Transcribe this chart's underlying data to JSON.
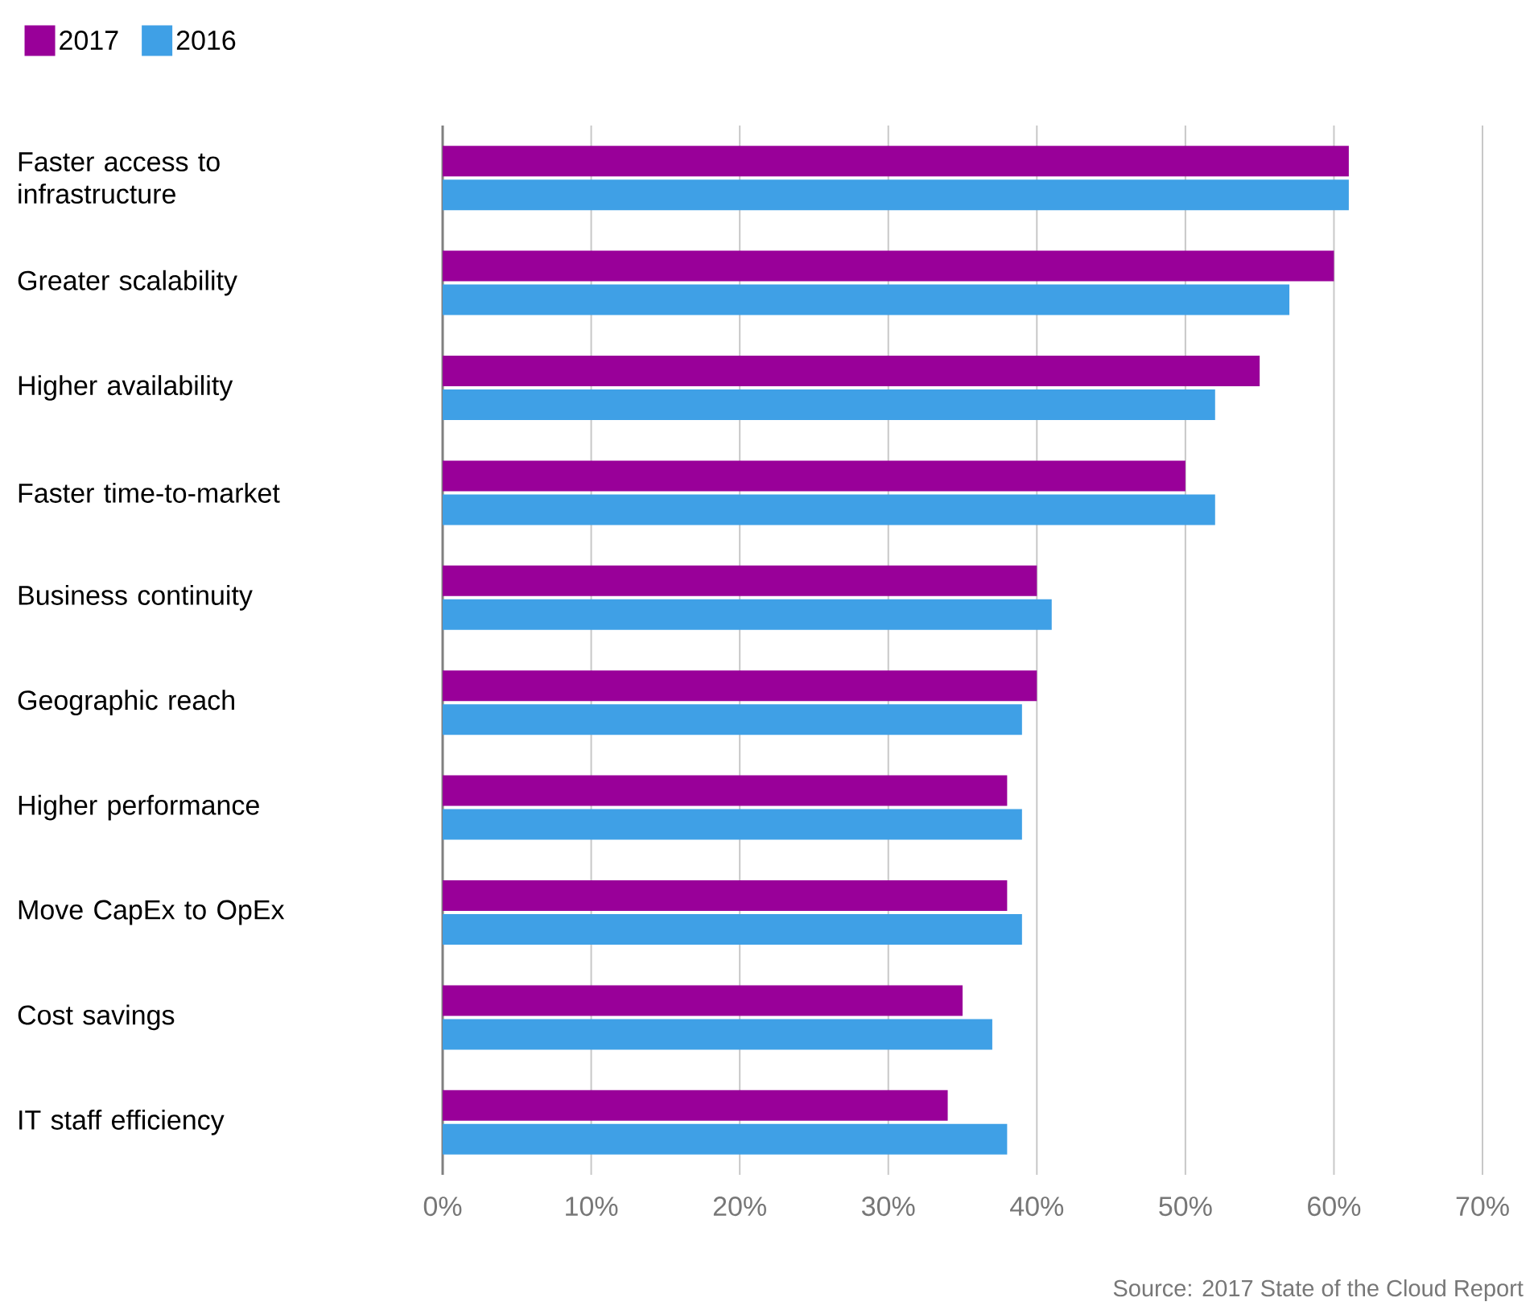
{
  "chart_data": {
    "type": "bar",
    "orientation": "horizontal",
    "categories": [
      "Faster access to infrastructure",
      "Greater scalability",
      "Higher availability",
      "Faster time-to-market",
      "Business continuity",
      "Geographic reach",
      "Higher performance",
      "Move CapEx to OpEx",
      "Cost savings",
      "IT staff efficiency"
    ],
    "series": [
      {
        "name": "2017",
        "color": "#990099",
        "values": [
          61,
          60,
          55,
          50,
          40,
          40,
          38,
          38,
          35,
          34
        ]
      },
      {
        "name": "2016",
        "color": "#3fa0e6",
        "values": [
          61,
          57,
          52,
          52,
          41,
          39,
          39,
          39,
          37,
          38
        ]
      }
    ],
    "xlim": [
      0,
      70
    ],
    "xticks": [
      {
        "value": 0,
        "label": "0%"
      },
      {
        "value": 10,
        "label": "10%"
      },
      {
        "value": 20,
        "label": "20%"
      },
      {
        "value": 30,
        "label": "30%"
      },
      {
        "value": 40,
        "label": "40%"
      },
      {
        "value": 50,
        "label": "50%"
      },
      {
        "value": 60,
        "label": "60%"
      },
      {
        "value": 70,
        "label": "70%"
      }
    ],
    "grid": "x",
    "legend": "top left",
    "annotations": [
      "Source: 2017 State of the Cloud Report"
    ]
  }
}
